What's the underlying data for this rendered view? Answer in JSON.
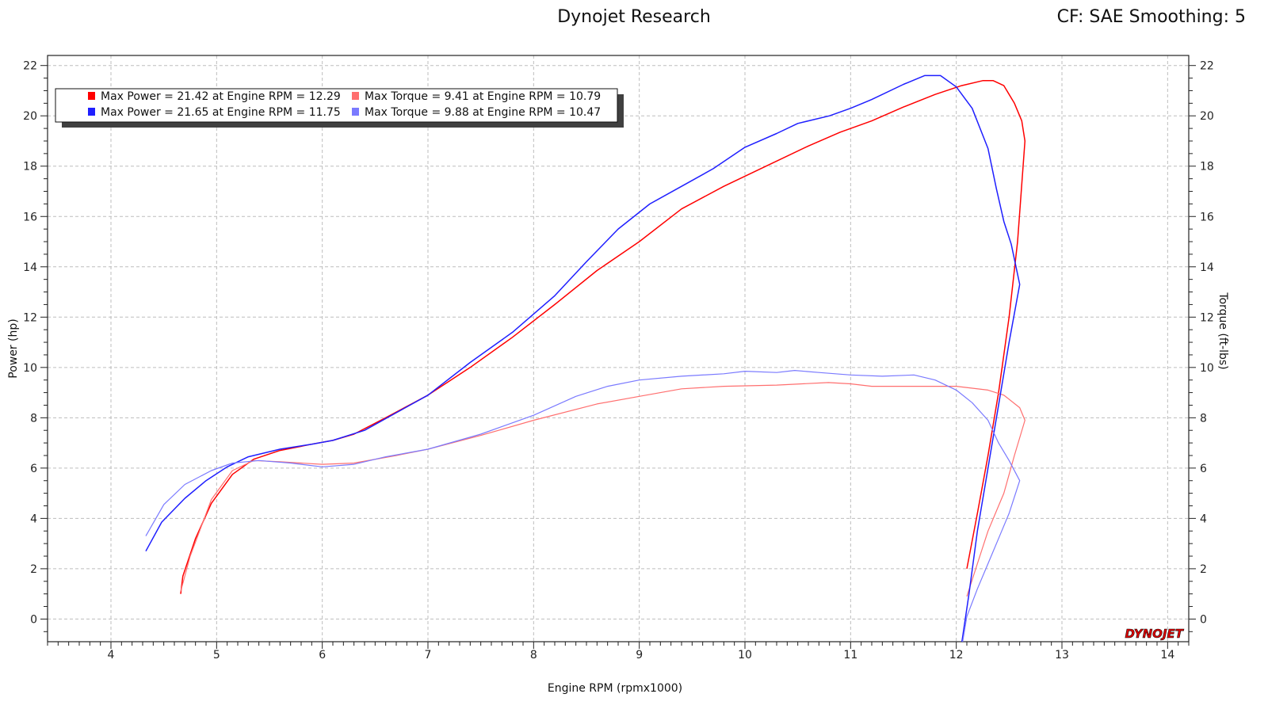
{
  "header": {
    "title": "Dynojet Research",
    "corner_info": "CF: SAE Smoothing: 5"
  },
  "logo_text": "DYNOJET",
  "colors": {
    "run1_power": "#ff0000",
    "run1_torque": "#ff6f6f",
    "run2_power": "#1f1fff",
    "run2_torque": "#7a7aff",
    "grid": "#bdbdbd"
  },
  "chart_data": {
    "type": "line",
    "title": "Dynojet Research",
    "xlabel": "Engine RPM (rpmx1000)",
    "ylabel_left": "Power (hp)",
    "ylabel_right": "Torque (ft-lbs)",
    "xlim": [
      3.4,
      14.2
    ],
    "ylim": [
      -0.9,
      22.4
    ],
    "x_ticks": [
      4,
      5,
      6,
      7,
      8,
      9,
      10,
      11,
      12,
      13,
      14
    ],
    "y_ticks": [
      0,
      2,
      4,
      6,
      8,
      10,
      12,
      14,
      16,
      18,
      20,
      22
    ],
    "grid": true,
    "legend_position": "top-left",
    "legend": [
      {
        "text": "Max Power = 21.42 at Engine RPM = 12.29",
        "series": "run1_power"
      },
      {
        "text": "Max Torque = 9.41 at Engine RPM = 10.79",
        "series": "run1_torque"
      },
      {
        "text": "Max Power = 21.65 at Engine RPM = 11.75",
        "series": "run2_power"
      },
      {
        "text": "Max Torque = 9.88 at Engine RPM = 10.47",
        "series": "run2_torque"
      }
    ],
    "series": [
      {
        "key": "run1_power",
        "axis": "left",
        "color": "#ff0000",
        "width": 1.5,
        "points": [
          [
            4.66,
            1.0
          ],
          [
            4.68,
            1.7
          ],
          [
            4.8,
            3.2
          ],
          [
            4.95,
            4.6
          ],
          [
            5.15,
            5.75
          ],
          [
            5.35,
            6.35
          ],
          [
            5.6,
            6.7
          ],
          [
            5.9,
            6.95
          ],
          [
            6.1,
            7.1
          ],
          [
            6.3,
            7.35
          ],
          [
            6.6,
            8.0
          ],
          [
            7.0,
            8.9
          ],
          [
            7.4,
            10.0
          ],
          [
            7.8,
            11.2
          ],
          [
            8.2,
            12.5
          ],
          [
            8.6,
            13.85
          ],
          [
            9.0,
            15.0
          ],
          [
            9.4,
            16.3
          ],
          [
            9.8,
            17.2
          ],
          [
            10.2,
            18.0
          ],
          [
            10.6,
            18.8
          ],
          [
            10.9,
            19.35
          ],
          [
            11.2,
            19.8
          ],
          [
            11.5,
            20.35
          ],
          [
            11.8,
            20.85
          ],
          [
            12.05,
            21.2
          ],
          [
            12.25,
            21.4
          ],
          [
            12.35,
            21.4
          ],
          [
            12.45,
            21.2
          ],
          [
            12.55,
            20.5
          ],
          [
            12.62,
            19.8
          ],
          [
            12.65,
            19.0
          ],
          [
            12.58,
            15.0
          ],
          [
            12.5,
            12.0
          ],
          [
            12.4,
            9.0
          ],
          [
            12.3,
            6.5
          ],
          [
            12.2,
            4.2
          ],
          [
            12.1,
            2.0
          ]
        ]
      },
      {
        "key": "run1_torque",
        "axis": "right",
        "color": "#ff6f6f",
        "width": 1.2,
        "points": [
          [
            4.66,
            1.1
          ],
          [
            4.75,
            2.5
          ],
          [
            4.95,
            4.75
          ],
          [
            5.15,
            5.9
          ],
          [
            5.35,
            6.3
          ],
          [
            5.6,
            6.25
          ],
          [
            6.0,
            6.15
          ],
          [
            6.3,
            6.2
          ],
          [
            6.7,
            6.5
          ],
          [
            7.0,
            6.75
          ],
          [
            7.5,
            7.3
          ],
          [
            8.0,
            7.9
          ],
          [
            8.6,
            8.55
          ],
          [
            9.0,
            8.85
          ],
          [
            9.4,
            9.15
          ],
          [
            9.8,
            9.25
          ],
          [
            10.3,
            9.3
          ],
          [
            10.79,
            9.4
          ],
          [
            11.0,
            9.35
          ],
          [
            11.2,
            9.25
          ],
          [
            11.6,
            9.25
          ],
          [
            12.0,
            9.25
          ],
          [
            12.3,
            9.1
          ],
          [
            12.45,
            8.9
          ],
          [
            12.6,
            8.4
          ],
          [
            12.65,
            7.9
          ],
          [
            12.55,
            6.5
          ],
          [
            12.45,
            5.0
          ],
          [
            12.3,
            3.5
          ],
          [
            12.2,
            2.2
          ],
          [
            12.1,
            0.9
          ]
        ]
      },
      {
        "key": "run2_power",
        "axis": "left",
        "color": "#1f1fff",
        "width": 1.5,
        "points": [
          [
            4.33,
            2.7
          ],
          [
            4.48,
            3.85
          ],
          [
            4.7,
            4.8
          ],
          [
            4.9,
            5.5
          ],
          [
            5.1,
            6.05
          ],
          [
            5.3,
            6.45
          ],
          [
            5.6,
            6.75
          ],
          [
            5.9,
            6.95
          ],
          [
            6.1,
            7.1
          ],
          [
            6.4,
            7.5
          ],
          [
            6.7,
            8.2
          ],
          [
            7.0,
            8.9
          ],
          [
            7.4,
            10.2
          ],
          [
            7.8,
            11.4
          ],
          [
            8.2,
            12.85
          ],
          [
            8.5,
            14.2
          ],
          [
            8.8,
            15.5
          ],
          [
            9.1,
            16.5
          ],
          [
            9.4,
            17.2
          ],
          [
            9.7,
            17.9
          ],
          [
            10.0,
            18.75
          ],
          [
            10.3,
            19.3
          ],
          [
            10.5,
            19.7
          ],
          [
            10.8,
            20.0
          ],
          [
            11.0,
            20.3
          ],
          [
            11.2,
            20.65
          ],
          [
            11.5,
            21.25
          ],
          [
            11.7,
            21.6
          ],
          [
            11.85,
            21.6
          ],
          [
            12.0,
            21.15
          ],
          [
            12.15,
            20.3
          ],
          [
            12.3,
            18.7
          ],
          [
            12.38,
            17.1
          ],
          [
            12.45,
            15.8
          ],
          [
            12.52,
            14.9
          ],
          [
            12.6,
            13.3
          ],
          [
            12.5,
            11.0
          ],
          [
            12.4,
            8.5
          ],
          [
            12.3,
            6.0
          ],
          [
            12.2,
            3.5
          ],
          [
            12.12,
            1.0
          ],
          [
            12.05,
            -1.0
          ]
        ]
      },
      {
        "key": "run2_torque",
        "axis": "right",
        "color": "#7a7aff",
        "width": 1.2,
        "points": [
          [
            4.33,
            3.3
          ],
          [
            4.5,
            4.55
          ],
          [
            4.7,
            5.35
          ],
          [
            4.95,
            5.9
          ],
          [
            5.15,
            6.2
          ],
          [
            5.4,
            6.3
          ],
          [
            5.7,
            6.2
          ],
          [
            6.0,
            6.05
          ],
          [
            6.3,
            6.15
          ],
          [
            6.6,
            6.45
          ],
          [
            7.0,
            6.75
          ],
          [
            7.5,
            7.35
          ],
          [
            8.0,
            8.1
          ],
          [
            8.4,
            8.85
          ],
          [
            8.7,
            9.25
          ],
          [
            9.0,
            9.5
          ],
          [
            9.4,
            9.65
          ],
          [
            9.8,
            9.75
          ],
          [
            10.0,
            9.85
          ],
          [
            10.3,
            9.8
          ],
          [
            10.47,
            9.88
          ],
          [
            10.7,
            9.8
          ],
          [
            11.0,
            9.7
          ],
          [
            11.3,
            9.65
          ],
          [
            11.6,
            9.7
          ],
          [
            11.8,
            9.5
          ],
          [
            12.0,
            9.1
          ],
          [
            12.15,
            8.6
          ],
          [
            12.3,
            7.9
          ],
          [
            12.4,
            7.0
          ],
          [
            12.5,
            6.3
          ],
          [
            12.6,
            5.5
          ],
          [
            12.5,
            4.2
          ],
          [
            12.4,
            3.2
          ],
          [
            12.3,
            2.2
          ],
          [
            12.2,
            1.2
          ],
          [
            12.1,
            0.1
          ],
          [
            12.06,
            -0.9
          ]
        ]
      }
    ]
  }
}
